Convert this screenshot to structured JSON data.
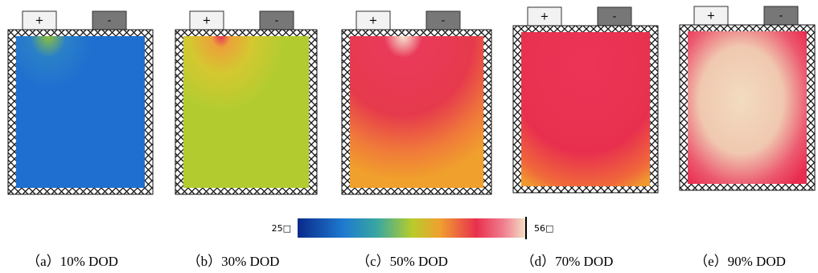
{
  "panels": [
    {
      "plus": "+",
      "minus": "-",
      "caption": "（a）10% DOD"
    },
    {
      "plus": "+",
      "minus": "-",
      "caption": "（b）30% DOD"
    },
    {
      "plus": "+",
      "minus": "-",
      "caption": "（c）50% DOD"
    },
    {
      "plus": "+",
      "minus": "-",
      "caption": "（d）70% DOD"
    },
    {
      "plus": "+",
      "minus": "-",
      "caption": "（e）90% DOD"
    }
  ],
  "colorbar": {
    "min_label": "25□",
    "max_label": "56□"
  }
}
